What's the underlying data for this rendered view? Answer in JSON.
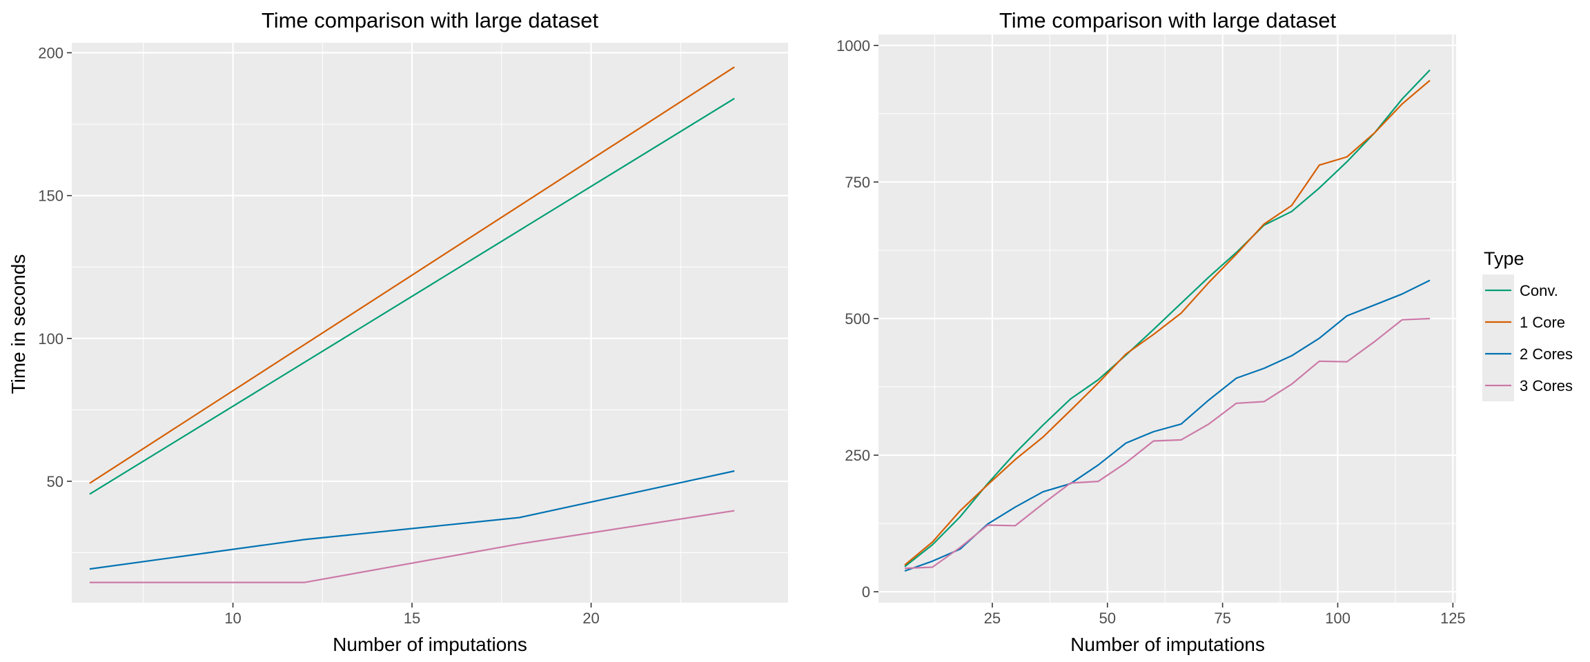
{
  "colors": {
    "panel_bg": "#EBEBEB",
    "grid": "#FFFFFF",
    "axis_text": "#4D4D4D",
    "title_text": "#000000",
    "tick_mark": "#333333"
  },
  "legend": {
    "title": "Type",
    "entries": [
      {
        "label": "Conv.",
        "color": "#009E73"
      },
      {
        "label": "1 Core",
        "color": "#D55E00"
      },
      {
        "label": "2 Cores",
        "color": "#0072B2"
      },
      {
        "label": "3 Cores",
        "color": "#CC79A7"
      }
    ]
  },
  "chart_data": [
    {
      "type": "line",
      "title": "Time comparison with large dataset",
      "xlabel": "Number of imputations",
      "ylabel": "Time in seconds",
      "xlim": [
        5.5,
        25.5
      ],
      "ylim": [
        7.5,
        203.5
      ],
      "xticks": [
        10,
        15,
        20
      ],
      "yticks": [
        50,
        100,
        150,
        200
      ],
      "grid": true,
      "series": [
        {
          "name": "Conv.",
          "color": "#009E73",
          "x": [
            6,
            24
          ],
          "y": [
            45.5,
            184
          ]
        },
        {
          "name": "1 Core",
          "color": "#D55E00",
          "x": [
            6,
            24
          ],
          "y": [
            49.3,
            195
          ]
        },
        {
          "name": "2 Cores",
          "color": "#0072B2",
          "x": [
            6,
            12,
            18,
            24
          ],
          "y": [
            19.3,
            29.6,
            37.3,
            53.6
          ]
        },
        {
          "name": "3 Cores",
          "color": "#CC79A7",
          "x": [
            6,
            12,
            18,
            24
          ],
          "y": [
            14.6,
            14.6,
            28.1,
            39.7
          ]
        }
      ]
    },
    {
      "type": "line",
      "title": "Time comparison with large dataset",
      "xlabel": "Number of imputations",
      "ylabel": "",
      "xlim": [
        0.3,
        125.7
      ],
      "ylim": [
        -20,
        1020
      ],
      "xticks": [
        25,
        50,
        75,
        100,
        125
      ],
      "yticks": [
        0,
        250,
        500,
        750,
        1000
      ],
      "grid": true,
      "series": [
        {
          "name": "Conv.",
          "color": "#009E73",
          "x": [
            6,
            12,
            18,
            24,
            30,
            36,
            42,
            48,
            54,
            60,
            66,
            72,
            78,
            84,
            90,
            96,
            102,
            108,
            114,
            120
          ],
          "y": [
            46,
            86,
            137,
            198,
            254,
            305,
            353,
            388,
            433,
            480,
            528,
            576,
            621,
            671,
            696,
            739,
            787,
            840,
            902,
            955
          ]
        },
        {
          "name": "1 Core",
          "color": "#D55E00",
          "x": [
            6,
            12,
            18,
            24,
            30,
            36,
            42,
            48,
            54,
            60,
            66,
            72,
            78,
            84,
            90,
            96,
            102,
            108,
            114,
            120
          ],
          "y": [
            49,
            91,
            148,
            196,
            242,
            283,
            332,
            382,
            435,
            471,
            510,
            566,
            618,
            673,
            707,
            781,
            796,
            840,
            893,
            936
          ]
        },
        {
          "name": "2 Cores",
          "color": "#0072B2",
          "x": [
            6,
            12,
            18,
            24,
            30,
            36,
            42,
            48,
            54,
            60,
            66,
            72,
            78,
            84,
            90,
            96,
            102,
            108,
            114,
            120
          ],
          "y": [
            38,
            56,
            78,
            124,
            155,
            183,
            198,
            232,
            272,
            293,
            307,
            351,
            391,
            409,
            432,
            464,
            505,
            525,
            545,
            570
          ]
        },
        {
          "name": "3 Cores",
          "color": "#CC79A7",
          "x": [
            6,
            12,
            18,
            24,
            30,
            36,
            42,
            48,
            54,
            60,
            66,
            72,
            78,
            84,
            90,
            96,
            102,
            108,
            114,
            120
          ],
          "y": [
            43,
            45,
            81,
            122,
            121,
            161,
            199,
            202,
            236,
            276,
            278,
            307,
            345,
            348,
            380,
            422,
            421,
            458,
            498,
            500
          ]
        }
      ]
    }
  ]
}
